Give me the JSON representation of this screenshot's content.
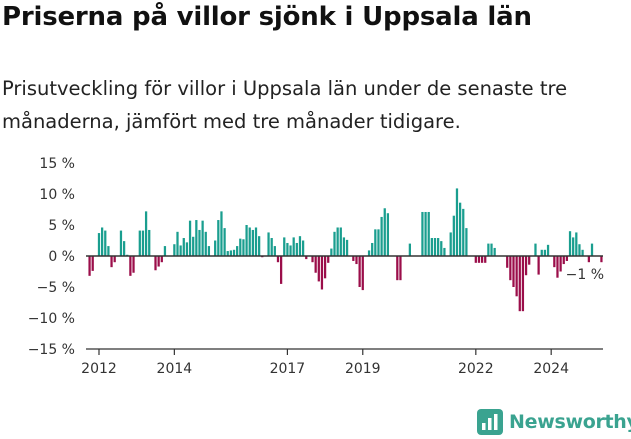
{
  "title": "Priserna på villor sjönk i Uppsala län",
  "subtitle": "Prisutveckling för villor i Uppsala län under de senaste tre månaderna, jämfört med tre månader tidigare.",
  "brand": {
    "name": "Newsworthy",
    "logo_icon": "newsworthy-logo-icon",
    "color": "#3aa390"
  },
  "colors": {
    "positive": "#1a9e8f",
    "negative": "#9b0e4a",
    "axis": "#333333",
    "text": "#333333"
  },
  "chart_data": {
    "type": "bar",
    "x_start": "2011-10",
    "x_step": "month",
    "x_ticks": [
      "2012",
      "2014",
      "2017",
      "2019",
      "2022",
      "2024"
    ],
    "x_tick_positions": [
      "2012-01",
      "2014-01",
      "2017-01",
      "2019-01",
      "2022-01",
      "2024-01"
    ],
    "ylim": [
      -15,
      15
    ],
    "y_ticks": [
      15,
      10,
      5,
      0,
      -5,
      -10,
      -15
    ],
    "y_tick_labels": [
      "15 %",
      "10 %",
      "5 %",
      "0 %",
      "−5 %",
      "−10 %",
      "−15 %"
    ],
    "grid": false,
    "annotation": {
      "label": "−1 %",
      "value": -1
    },
    "values": [
      -3.2,
      -2.4,
      0,
      3.7,
      4.6,
      4.1,
      1.6,
      -1.8,
      -1.0,
      0,
      4.1,
      2.4,
      0.2,
      -3.2,
      -2.7,
      0,
      4.1,
      4.1,
      7.2,
      4.2,
      0,
      -2.3,
      -1.7,
      -1.0,
      1.6,
      0,
      0,
      1.9,
      3.9,
      1.7,
      2.9,
      2.2,
      5.7,
      3.1,
      5.8,
      4.2,
      5.7,
      3.9,
      1.6,
      0,
      2.5,
      5.8,
      7.2,
      4.5,
      0.8,
      0.9,
      1.0,
      1.6,
      2.8,
      2.7,
      5.0,
      4.6,
      4.2,
      4.6,
      3.2,
      -0.2,
      0,
      3.8,
      2.9,
      1.6,
      -1.0,
      -4.5,
      3.0,
      2.1,
      1.7,
      3.0,
      2.1,
      3.2,
      2.5,
      -0.5,
      0,
      -1.0,
      -2.7,
      -4.1,
      -5.4,
      -3.6,
      -1.1,
      1.2,
      3.9,
      4.6,
      4.6,
      3.0,
      2.6,
      0,
      -0.8,
      -1.3,
      -5.0,
      -5.5,
      0,
      0.9,
      2.1,
      4.3,
      4.3,
      6.3,
      7.7,
      6.9,
      0,
      0,
      -3.9,
      -3.9,
      0,
      0,
      2.0,
      0,
      0,
      0,
      7.1,
      7.1,
      7.1,
      2.9,
      2.9,
      2.9,
      2.4,
      1.3,
      0,
      3.8,
      6.5,
      10.9,
      8.6,
      7.6,
      4.5,
      0,
      0,
      -1.1,
      -1.1,
      -1.1,
      -1.1,
      2.0,
      2.0,
      1.3,
      0,
      0,
      0,
      -1.9,
      -3.9,
      -5.0,
      -6.5,
      -8.9,
      -8.9,
      -3.1,
      -1.4,
      0,
      2.0,
      -3.0,
      1.0,
      1.0,
      1.8,
      0,
      -1.8,
      -3.5,
      -2.5,
      -1.3,
      -0.8,
      4.0,
      3.0,
      3.8,
      1.9,
      1.0,
      0,
      -1.0,
      2.0,
      0,
      0,
      -1.0
    ]
  }
}
